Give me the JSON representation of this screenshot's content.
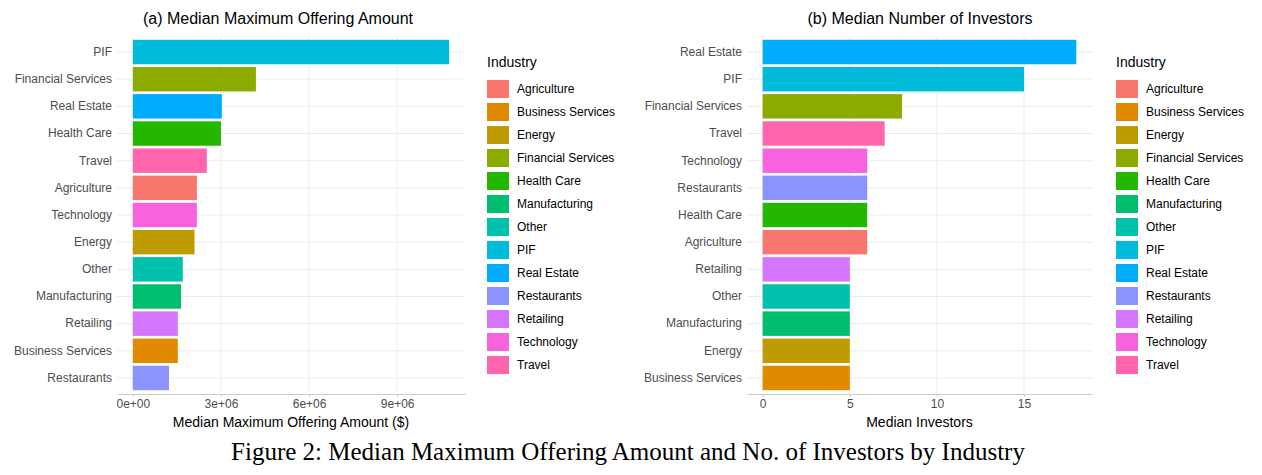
{
  "chart_data": [
    {
      "type": "bar",
      "orientation": "horizontal",
      "title": "(a) Median Maximum Offering Amount",
      "xlabel": "Median Maximum Offering Amount ($)",
      "categories": [
        "PIF",
        "Financial Services",
        "Real Estate",
        "Health Care",
        "Travel",
        "Agriculture",
        "Technology",
        "Energy",
        "Other",
        "Manufacturing",
        "Retailing",
        "Business Services",
        "Restaurants"
      ],
      "values": [
        10770000,
        4190000,
        3030000,
        3000000,
        2520000,
        2180000,
        2180000,
        2100000,
        1700000,
        1640000,
        1530000,
        1530000,
        1230000
      ],
      "colors": [
        "#00BBDA",
        "#8CAB00",
        "#00ACFC",
        "#24B700",
        "#FF65AC",
        "#F8766D",
        "#F962DD",
        "#BE9C00",
        "#00C1AB",
        "#00BE70",
        "#D575FE",
        "#E18A00",
        "#8B93FF"
      ],
      "xlim": [
        -540000,
        11310000
      ],
      "xticks": [
        {
          "value": 0,
          "label": "0e+00"
        },
        {
          "value": 3000000,
          "label": "3e+06"
        },
        {
          "value": 6000000,
          "label": "6e+06"
        },
        {
          "value": 9000000,
          "label": "9e+06"
        }
      ],
      "grid": true,
      "legend": "right",
      "legend_title": "Industry",
      "legend_entries": [
        {
          "name": "Agriculture",
          "color": "#F8766D"
        },
        {
          "name": "Business Services",
          "color": "#E18A00"
        },
        {
          "name": "Energy",
          "color": "#BE9C00"
        },
        {
          "name": "Financial Services",
          "color": "#8CAB00"
        },
        {
          "name": "Health Care",
          "color": "#24B700"
        },
        {
          "name": "Manufacturing",
          "color": "#00BE70"
        },
        {
          "name": "Other",
          "color": "#00C1AB"
        },
        {
          "name": "PIF",
          "color": "#00BBDA"
        },
        {
          "name": "Real Estate",
          "color": "#00ACFC"
        },
        {
          "name": "Restaurants",
          "color": "#8B93FF"
        },
        {
          "name": "Retailing",
          "color": "#D575FE"
        },
        {
          "name": "Technology",
          "color": "#F962DD"
        },
        {
          "name": "Travel",
          "color": "#FF65AC"
        }
      ]
    },
    {
      "type": "bar",
      "orientation": "horizontal",
      "title": "(b) Median Number of Investors",
      "xlabel": "Median Investors",
      "categories": [
        "Real Estate",
        "PIF",
        "Financial Services",
        "Travel",
        "Technology",
        "Restaurants",
        "Health Care",
        "Agriculture",
        "Retailing",
        "Other",
        "Manufacturing",
        "Energy",
        "Business Services"
      ],
      "values": [
        18,
        15,
        8,
        7,
        6,
        6,
        6,
        6,
        5,
        5,
        5,
        5,
        5
      ],
      "colors": [
        "#00ACFC",
        "#00BBDA",
        "#8CAB00",
        "#FF65AC",
        "#F962DD",
        "#8B93FF",
        "#24B700",
        "#F8766D",
        "#D575FE",
        "#00C1AB",
        "#00BE70",
        "#BE9C00",
        "#E18A00"
      ],
      "xlim": [
        -0.9,
        18.9
      ],
      "xticks": [
        0,
        5,
        10,
        15
      ],
      "grid": true,
      "legend": "right",
      "legend_title": "Industry",
      "legend_entries": [
        {
          "name": "Agriculture",
          "color": "#F8766D"
        },
        {
          "name": "Business Services",
          "color": "#E18A00"
        },
        {
          "name": "Energy",
          "color": "#BE9C00"
        },
        {
          "name": "Financial Services",
          "color": "#8CAB00"
        },
        {
          "name": "Health Care",
          "color": "#24B700"
        },
        {
          "name": "Manufacturing",
          "color": "#00BE70"
        },
        {
          "name": "Other",
          "color": "#00C1AB"
        },
        {
          "name": "PIF",
          "color": "#00BBDA"
        },
        {
          "name": "Real Estate",
          "color": "#00ACFC"
        },
        {
          "name": "Restaurants",
          "color": "#8B93FF"
        },
        {
          "name": "Retailing",
          "color": "#D575FE"
        },
        {
          "name": "Technology",
          "color": "#F962DD"
        },
        {
          "name": "Travel",
          "color": "#FF65AC"
        }
      ]
    }
  ],
  "caption": "Figure 2: Median Maximum Offering Amount and No. of Investors by Industry"
}
